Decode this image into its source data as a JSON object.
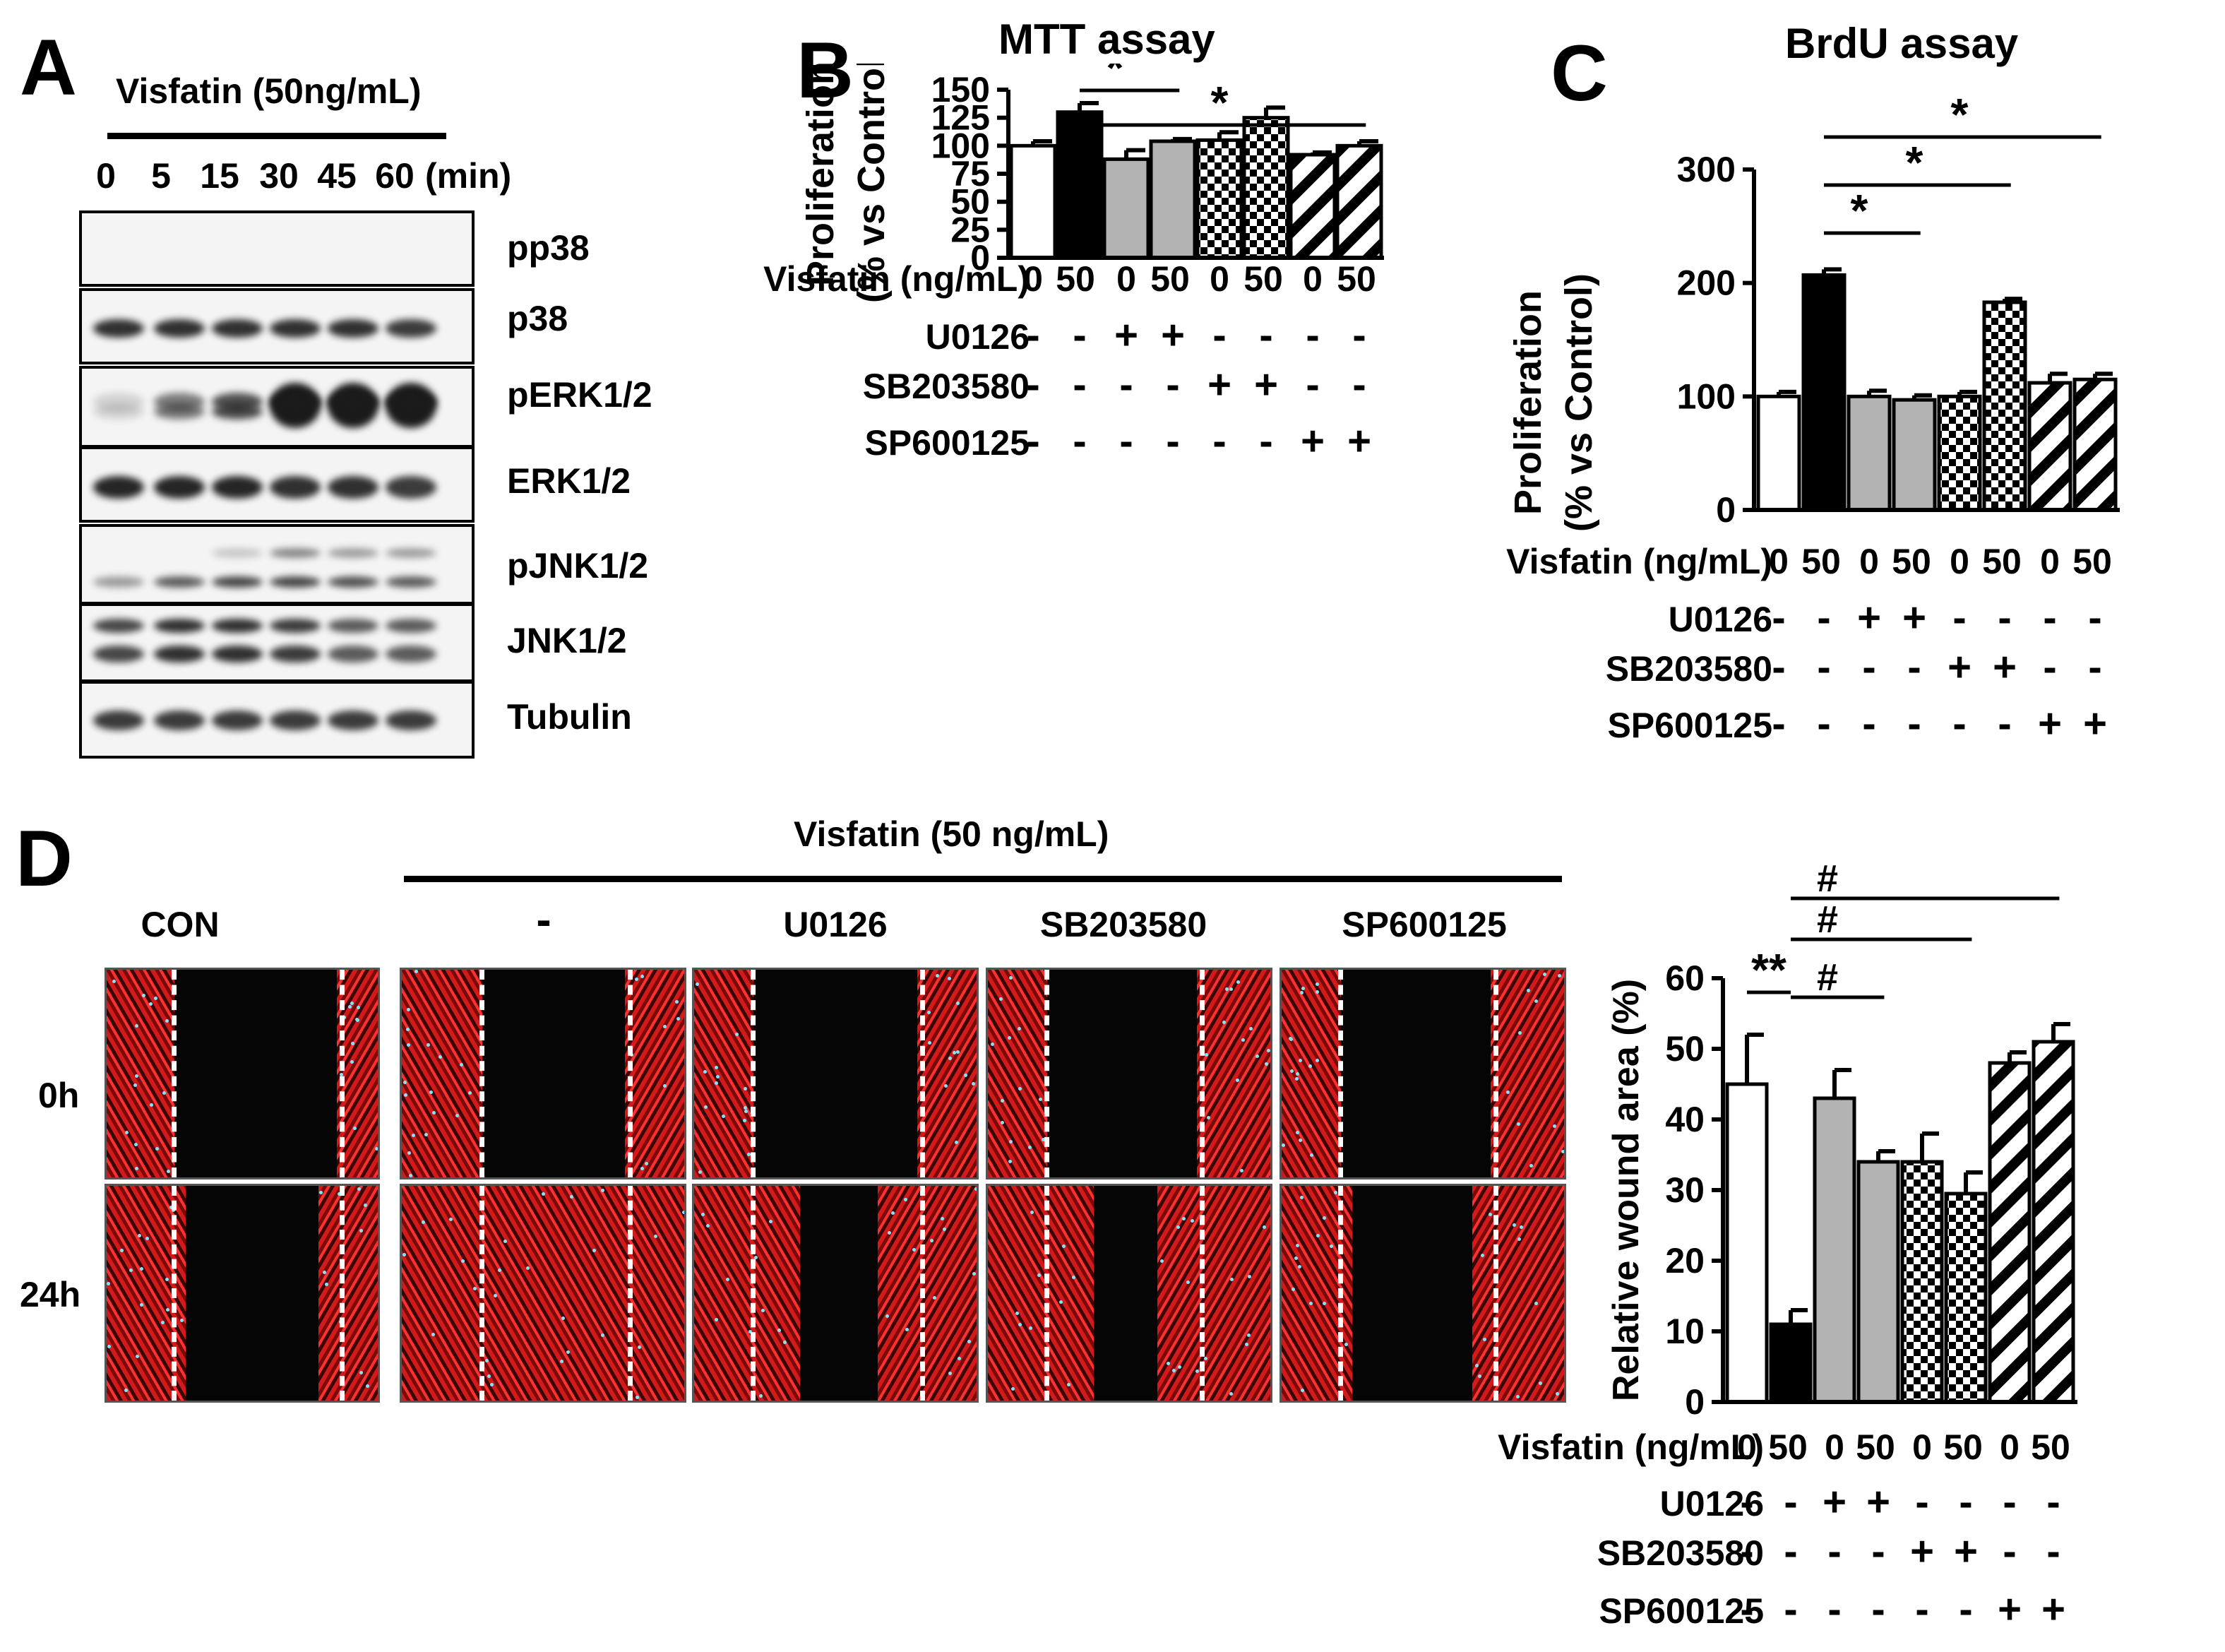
{
  "panelA": {
    "letter": "A",
    "header": "Visfatin (50ng/mL)",
    "timepoints": [
      "0",
      "5",
      "15",
      "30",
      "45",
      "60"
    ],
    "time_unit": "(min)",
    "rows": [
      "pp38",
      "p38",
      "pERK1/2",
      "ERK1/2",
      "pJNK1/2",
      "JNK1/2",
      "Tubulin"
    ]
  },
  "panelB": {
    "letter": "B"
  },
  "panelC": {
    "letter": "C"
  },
  "panelD": {
    "letter": "D",
    "header": "Visfatin (50 ng/mL)",
    "columns": [
      "CON",
      "-",
      "U0126",
      "SB203580",
      "SP600125"
    ],
    "rows": [
      "0h",
      "24h"
    ]
  },
  "conditions": {
    "visfatin_label": "Visfatin (ng/mL)",
    "visfatin": [
      "0",
      "50",
      "0",
      "50",
      "0",
      "50",
      "0",
      "50"
    ],
    "inhibitors": [
      {
        "name": "U0126",
        "signs": [
          "-",
          "-",
          "+",
          "+",
          "-",
          "-",
          "-",
          "-"
        ]
      },
      {
        "name": "SB203580",
        "signs": [
          "-",
          "-",
          "-",
          "-",
          "+",
          "+",
          "-",
          "-"
        ]
      },
      {
        "name": "SP600125",
        "signs": [
          "-",
          "-",
          "-",
          "-",
          "-",
          "-",
          "+",
          "+"
        ]
      }
    ]
  },
  "chart_data": [
    {
      "id": "B",
      "type": "bar",
      "title": "MTT assay",
      "ylabel_lines": [
        "Proliferation",
        "(% vs Control)"
      ],
      "ylim": [
        0,
        150
      ],
      "yticks": [
        0,
        25,
        50,
        75,
        100,
        125,
        150
      ],
      "values": [
        100,
        130,
        88,
        104,
        105,
        125,
        92,
        100
      ],
      "errors": [
        4,
        8,
        8,
        2,
        7,
        9,
        2,
        4
      ],
      "fills": [
        "white",
        "black",
        "gray",
        "gray",
        "checker",
        "checker",
        "stripe",
        "stripe"
      ],
      "significance": [
        {
          "from": 1,
          "to": 3,
          "label": "*"
        },
        {
          "from": 1,
          "to": 7,
          "label": "*"
        }
      ]
    },
    {
      "id": "C",
      "type": "bar",
      "title": "BrdU assay",
      "ylabel_lines": [
        "Proliferation",
        "(% vs  Control)"
      ],
      "ylim": [
        0,
        300
      ],
      "yticks": [
        0,
        100,
        200,
        300
      ],
      "values": [
        100,
        207,
        100,
        97,
        100,
        183,
        112,
        115
      ],
      "errors": [
        4,
        5,
        5,
        4,
        4,
        3,
        8,
        5
      ],
      "fills": [
        "white",
        "black",
        "gray",
        "gray",
        "checker",
        "checker",
        "stripe",
        "stripe"
      ],
      "significance": [
        {
          "from": 1,
          "to": 3,
          "label": "*"
        },
        {
          "from": 1,
          "to": 5,
          "label": "*"
        },
        {
          "from": 1,
          "to": 7,
          "label": "*"
        }
      ]
    },
    {
      "id": "D",
      "type": "bar",
      "title": "",
      "ylabel_lines": [
        "Relative wound area (%)"
      ],
      "ylim": [
        0,
        60
      ],
      "yticks": [
        0,
        10,
        20,
        30,
        40,
        50,
        60
      ],
      "values": [
        45,
        11,
        43,
        34,
        34,
        29.5,
        48,
        51
      ],
      "errors": [
        7,
        2,
        4,
        1.5,
        4,
        3,
        1.5,
        2.5
      ],
      "fills": [
        "white",
        "black",
        "gray",
        "gray",
        "checker",
        "checker",
        "stripe",
        "stripe"
      ],
      "significance": [
        {
          "from": 0,
          "to": 1,
          "label": "**"
        },
        {
          "from": 1,
          "to": 3,
          "label": "#"
        },
        {
          "from": 1,
          "to": 5,
          "label": "#"
        },
        {
          "from": 1,
          "to": 7,
          "label": "#"
        }
      ]
    }
  ]
}
